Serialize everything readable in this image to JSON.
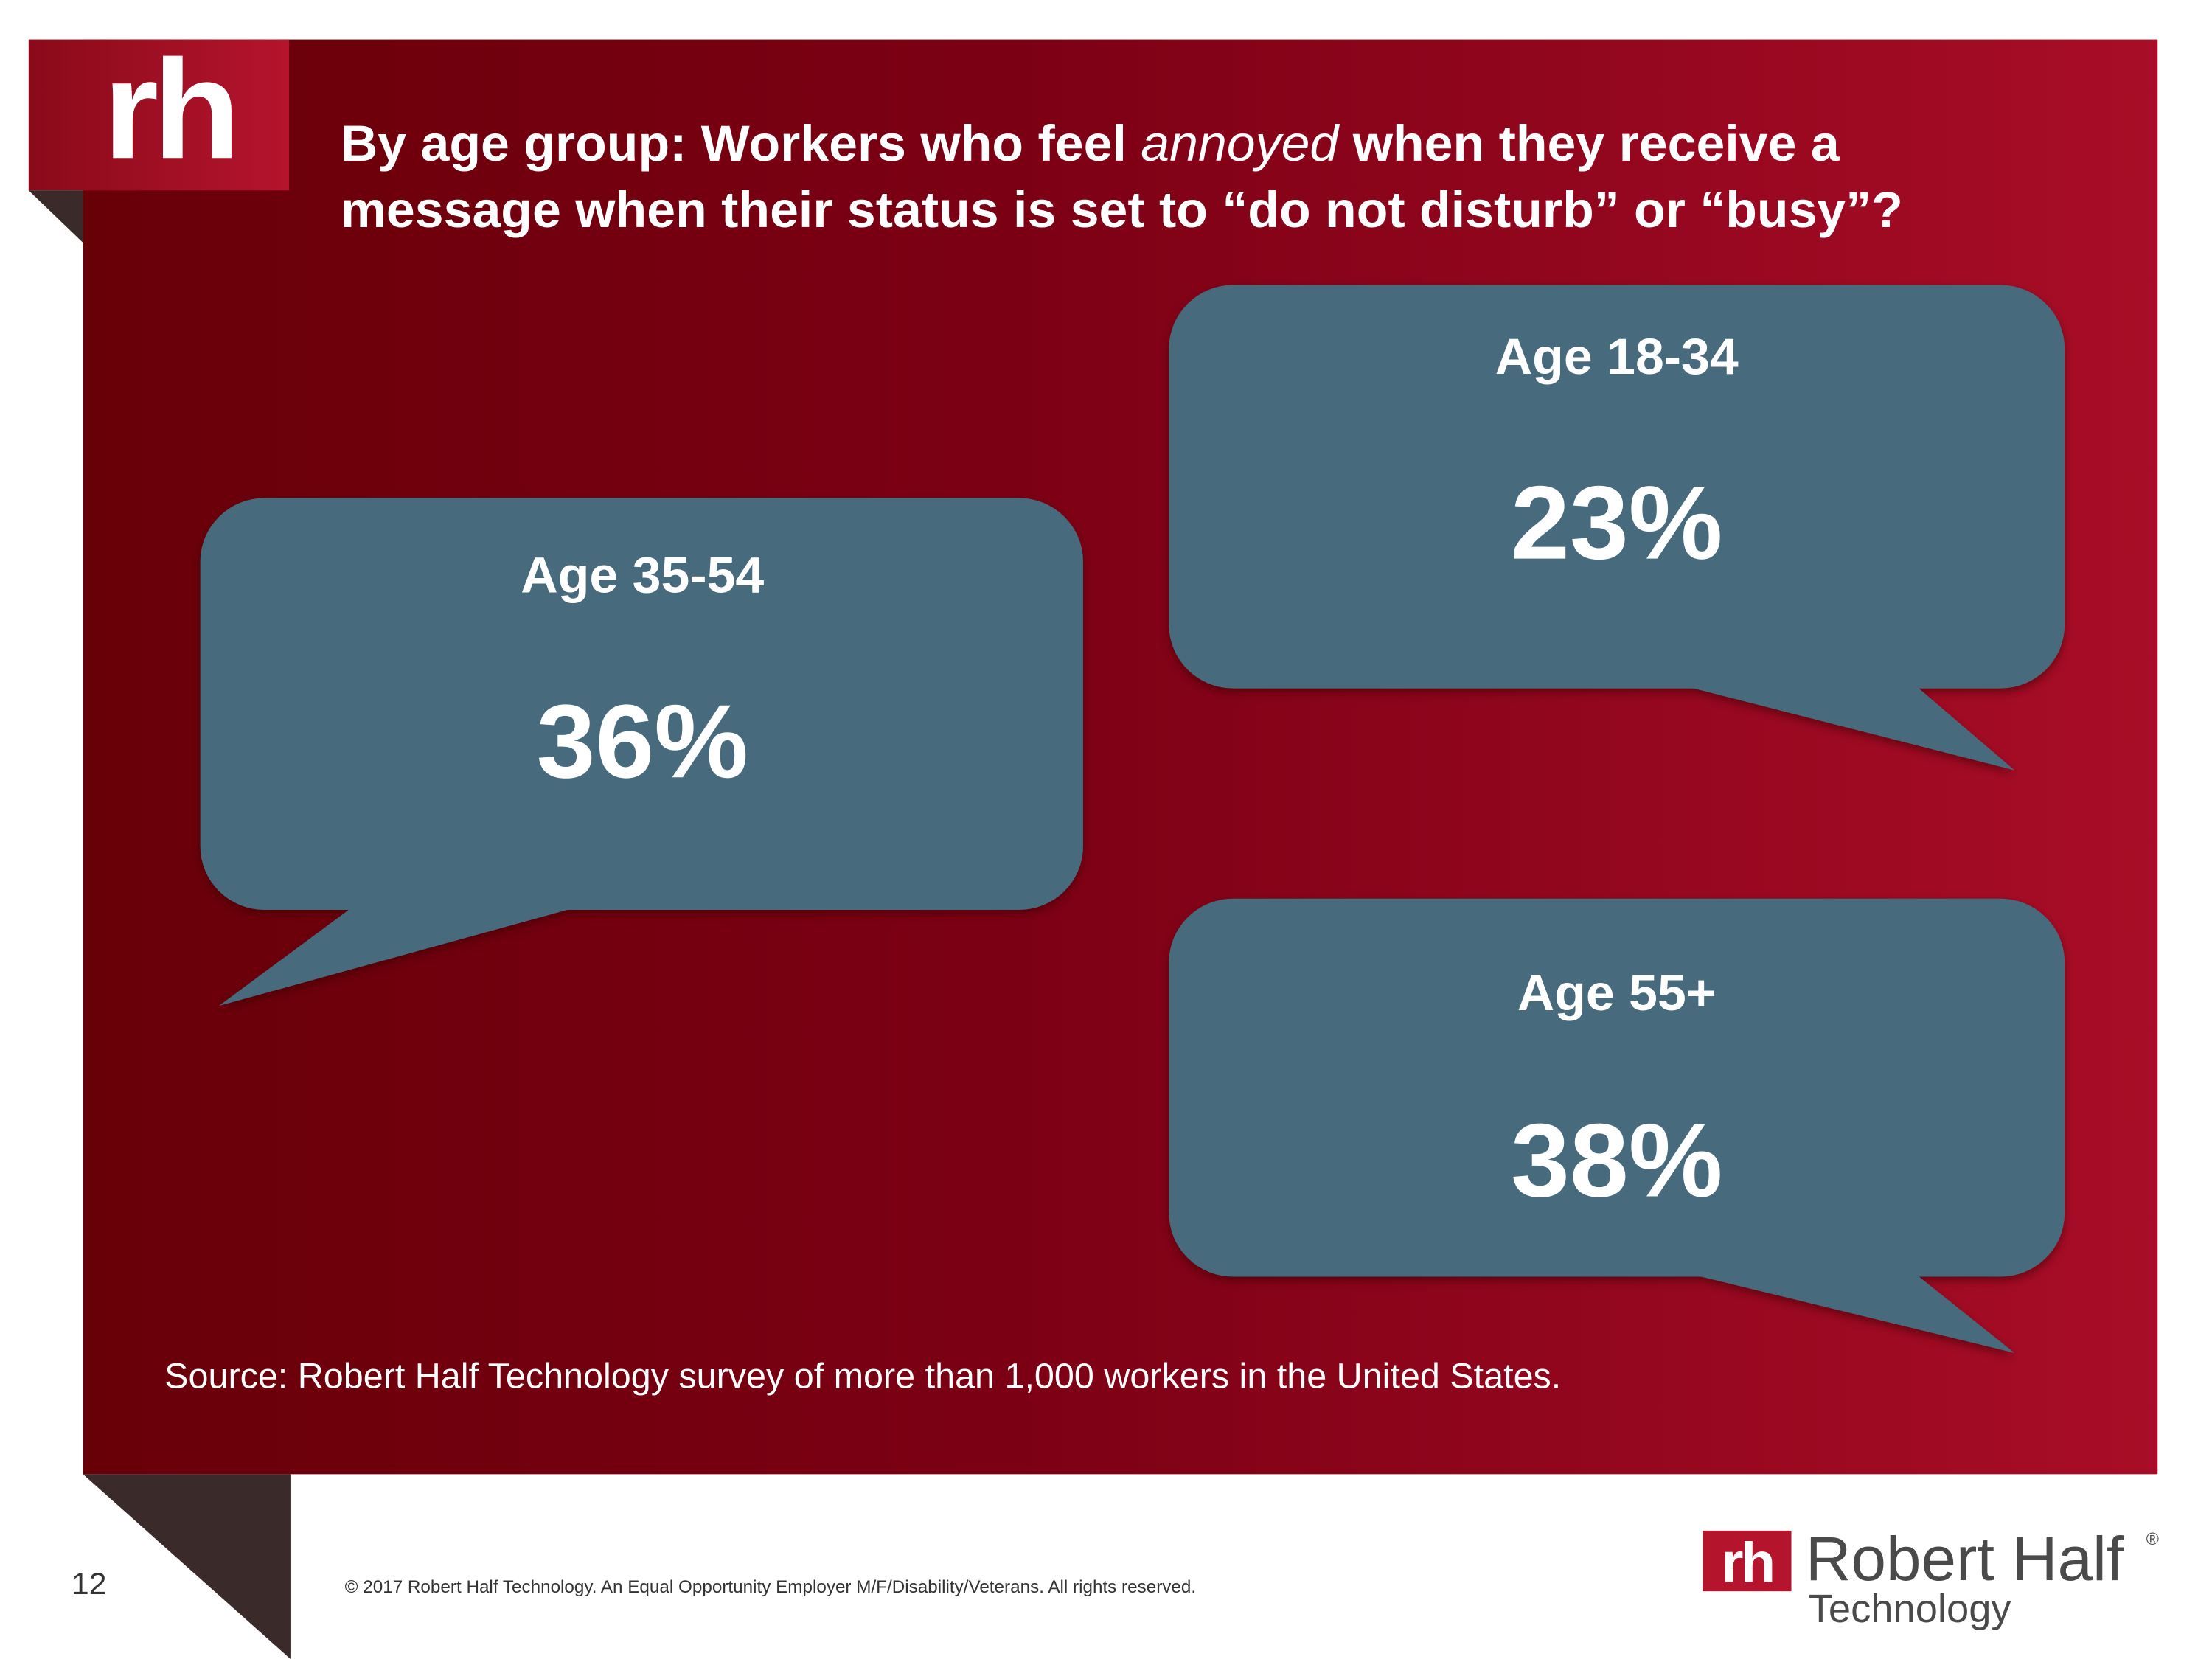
{
  "logo": "rh",
  "title": {
    "line1": [
      "By age group: Workers who feel ",
      "annoyed",
      " when they receive a"
    ],
    "line2": "message when their status is set to “do not disturb” or “busy”?"
  },
  "bubbles": [
    {
      "label": "Age 18-34",
      "value": "23%"
    },
    {
      "label": "Age 35-54",
      "value": "36%"
    },
    {
      "label": "Age 55+",
      "value": "38%"
    }
  ],
  "source": "Source: Robert Half Technology survey of more than 1,000 workers in the United States.",
  "footer": {
    "page_number": "12",
    "copyright": "© 2017 Robert Half Technology. An Equal Opportunity Employer M/F/Disability/Veterans. All rights reserved.",
    "brand_mark": "rh",
    "brand_name": "Robert Half",
    "registered": "®",
    "brand_sub": "Technology"
  }
}
